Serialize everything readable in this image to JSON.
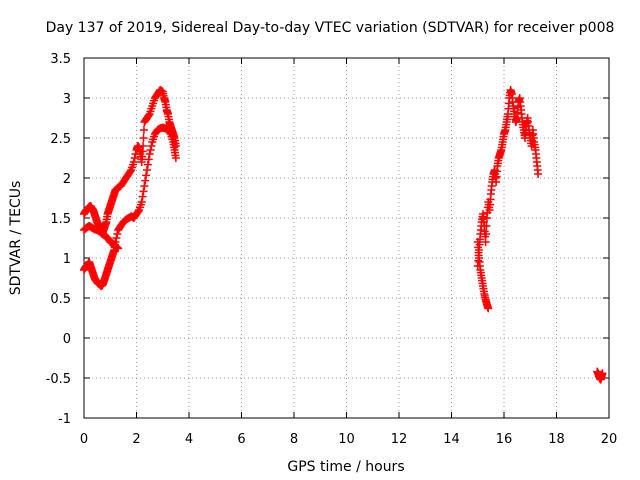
{
  "chart_data": {
    "type": "scatter",
    "title": "Day 137 of 2019, Sidereal Day-to-day VTEC variation (SDTVAR) for receiver p008",
    "xlabel": "GPS time / hours",
    "ylabel": "SDTVAR / TECUs",
    "xlim": [
      0,
      20
    ],
    "ylim": [
      -1,
      3.5
    ],
    "xticks": [
      "0",
      "2",
      "4",
      "6",
      "8",
      "10",
      "12",
      "14",
      "16",
      "18",
      "20"
    ],
    "yticks": [
      "-1",
      "-0.5",
      "0",
      "0.5",
      "1",
      "1.5",
      "2",
      "2.5",
      "3",
      "3.5"
    ],
    "grid": true,
    "marker": "+",
    "color": "#ff0000",
    "series": [
      {
        "name": "segment-1-upper",
        "x": [
          0.0,
          0.05,
          0.1,
          0.15,
          0.2,
          0.25,
          0.3,
          0.35,
          0.4,
          0.45,
          0.5,
          0.55,
          0.6,
          0.65,
          0.7,
          0.75,
          0.8,
          0.85,
          0.9,
          0.95,
          1.0,
          1.05,
          1.1,
          1.15,
          1.2,
          1.3,
          1.4,
          1.5,
          1.6,
          1.7,
          1.8,
          1.9,
          2.0,
          2.05,
          2.1,
          2.15,
          2.2,
          2.25,
          2.3,
          2.4,
          2.5,
          2.6,
          2.7,
          2.8,
          2.9,
          3.0,
          3.05,
          3.1,
          3.15,
          3.2,
          3.25,
          3.3,
          3.35,
          3.4,
          3.45,
          3.5
        ],
        "y": [
          1.55,
          1.58,
          1.6,
          1.62,
          1.64,
          1.65,
          1.62,
          1.6,
          1.55,
          1.5,
          1.45,
          1.42,
          1.38,
          1.35,
          1.3,
          1.35,
          1.4,
          1.45,
          1.55,
          1.6,
          1.65,
          1.7,
          1.75,
          1.8,
          1.85,
          1.88,
          1.9,
          1.95,
          2.0,
          2.05,
          2.1,
          2.2,
          2.35,
          2.4,
          2.38,
          2.3,
          2.2,
          2.4,
          2.7,
          2.75,
          2.8,
          2.9,
          3.0,
          3.05,
          3.1,
          3.08,
          3.0,
          2.95,
          2.85,
          2.8,
          2.7,
          2.65,
          2.6,
          2.55,
          2.5,
          2.4
        ]
      },
      {
        "name": "segment-1-lower",
        "x": [
          0.0,
          0.05,
          0.1,
          0.15,
          0.2,
          0.25,
          0.3,
          0.35,
          0.4,
          0.45,
          0.5,
          0.55,
          0.6,
          0.65,
          0.7,
          0.75,
          0.8,
          0.85,
          0.9,
          0.95,
          1.0,
          1.05,
          1.1,
          1.15,
          1.2,
          1.3,
          1.4,
          1.5,
          1.6,
          1.7,
          1.8,
          1.9,
          2.0,
          2.1,
          2.2,
          2.3,
          2.4,
          2.5,
          2.6,
          2.7,
          2.8,
          2.9,
          3.0,
          3.1,
          3.2,
          3.3,
          3.4,
          3.45,
          3.5
        ],
        "y": [
          0.85,
          0.88,
          0.9,
          0.92,
          0.95,
          0.9,
          0.85,
          0.8,
          0.75,
          0.72,
          0.7,
          0.68,
          0.67,
          0.65,
          0.66,
          0.7,
          0.75,
          0.8,
          0.85,
          0.9,
          0.95,
          1.0,
          1.05,
          1.1,
          1.2,
          1.35,
          1.4,
          1.45,
          1.48,
          1.5,
          1.52,
          1.5,
          1.55,
          1.6,
          1.7,
          1.9,
          2.1,
          2.3,
          2.45,
          2.55,
          2.6,
          2.62,
          2.63,
          2.62,
          2.6,
          2.55,
          2.45,
          2.35,
          2.25
        ]
      },
      {
        "name": "segment-1-middle",
        "x": [
          0.0,
          0.1,
          0.2,
          0.3,
          0.4,
          0.5,
          0.6,
          0.7,
          0.8,
          0.9,
          1.0,
          1.1,
          1.2,
          1.3
        ],
        "y": [
          1.35,
          1.38,
          1.4,
          1.38,
          1.36,
          1.35,
          1.33,
          1.3,
          1.28,
          1.25,
          1.2,
          1.18,
          1.15,
          1.12
        ]
      },
      {
        "name": "segment-2",
        "x": [
          15.0,
          15.05,
          15.1,
          15.15,
          15.2,
          15.25,
          15.3,
          15.35,
          15.4,
          15.45,
          15.5,
          15.55,
          15.6,
          15.65,
          15.7,
          15.75,
          15.8,
          15.85,
          15.9,
          15.95,
          16.0,
          16.05,
          16.1,
          16.15,
          16.2,
          16.25,
          16.3,
          16.35,
          16.4,
          16.45,
          16.5,
          16.55,
          16.6,
          16.65,
          16.7,
          16.75,
          16.8,
          16.85,
          16.9,
          16.95,
          17.0,
          17.05,
          17.1,
          17.15,
          17.2,
          17.25,
          17.3
        ],
        "y": [
          0.9,
          1.1,
          1.3,
          1.45,
          1.55,
          1.4,
          1.2,
          1.5,
          1.7,
          1.6,
          1.8,
          1.95,
          2.05,
          2.1,
          1.95,
          2.15,
          2.25,
          2.3,
          2.35,
          2.45,
          2.55,
          2.6,
          2.7,
          2.8,
          3.0,
          3.1,
          3.05,
          2.9,
          2.8,
          2.7,
          2.75,
          2.95,
          3.0,
          2.85,
          2.7,
          2.6,
          2.5,
          2.65,
          2.75,
          2.6,
          2.5,
          2.4,
          2.6,
          2.45,
          2.35,
          2.2,
          2.05
        ]
      },
      {
        "name": "segment-2-lower",
        "x": [
          15.0,
          15.05,
          15.1,
          15.15,
          15.2,
          15.25,
          15.3,
          15.35,
          15.4
        ],
        "y": [
          1.2,
          1.0,
          0.85,
          0.75,
          0.65,
          0.55,
          0.48,
          0.42,
          0.37
        ]
      },
      {
        "name": "segment-3",
        "x": [
          19.55,
          19.6,
          19.62,
          19.65,
          19.68,
          19.7,
          19.72,
          19.75
        ],
        "y": [
          -0.42,
          -0.45,
          -0.48,
          -0.5,
          -0.52,
          -0.5,
          -0.47,
          -0.44
        ]
      }
    ]
  }
}
